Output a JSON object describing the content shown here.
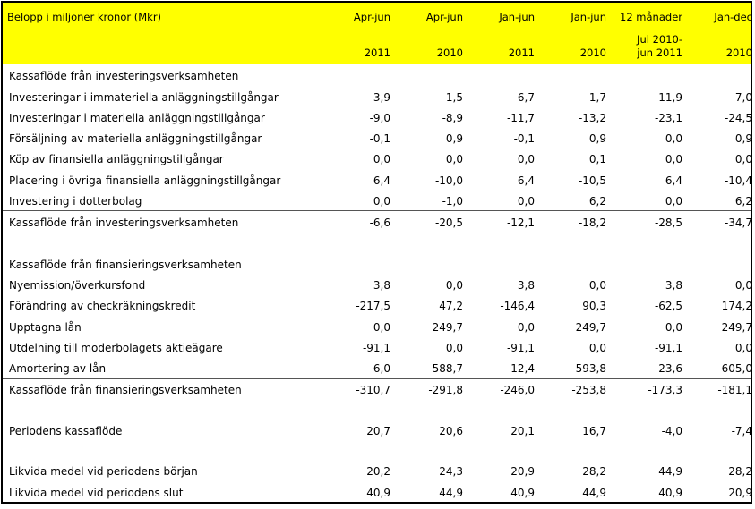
{
  "header": {
    "title": "Belopp i miljoner kronor (Mkr)",
    "columns": [
      {
        "line1": "Apr-jun",
        "line2": "",
        "line3": "2011"
      },
      {
        "line1": "Apr-jun",
        "line2": "",
        "line3": "2010"
      },
      {
        "line1": "Jan-jun",
        "line2": "",
        "line3": "2011"
      },
      {
        "line1": "Jan-jun",
        "line2": "",
        "line3": "2010"
      },
      {
        "line1": "12 månader",
        "line2": "Jul 2010-",
        "line3": "jun 2011"
      },
      {
        "line1": "Jan-dec",
        "line2": "",
        "line3": "2010"
      }
    ]
  },
  "rows": [
    {
      "label": "Kassaflöde från investeringsverksamheten",
      "values": [
        "",
        "",
        "",
        "",
        "",
        ""
      ]
    },
    {
      "label": "Investeringar i immateriella anläggningstillgångar",
      "values": [
        "-3,9",
        "-1,5",
        "-6,7",
        "-1,7",
        "-11,9",
        "-7,0"
      ]
    },
    {
      "label": "Investeringar i materiella anläggningstillgångar",
      "values": [
        "-9,0",
        "-8,9",
        "-11,7",
        "-13,2",
        "-23,1",
        "-24,5"
      ]
    },
    {
      "label": "Försäljning av materiella anläggningstillgångar",
      "values": [
        "-0,1",
        "0,9",
        "-0,1",
        "0,9",
        "0,0",
        "0,9"
      ]
    },
    {
      "label": "Köp av finansiella anläggningstillgångar",
      "values": [
        "0,0",
        "0,0",
        "0,0",
        "0,1",
        "0,0",
        "0,0"
      ]
    },
    {
      "label": "Placering i övriga finansiella anläggningstillgångar",
      "values": [
        "6,4",
        "-10,0",
        "6,4",
        "-10,5",
        "6,4",
        "-10,4"
      ]
    },
    {
      "label": "Investering i dotterbolag",
      "values": [
        "0,0",
        "-1,0",
        "0,0",
        "6,2",
        "0,0",
        "6,2"
      ]
    },
    {
      "label": "Kassaflöde från investeringsverksamheten",
      "values": [
        "-6,6",
        "-20,5",
        "-12,1",
        "-18,2",
        "-28,5",
        "-34,7"
      ]
    },
    {
      "label": "Kassaflöde från finansieringsverksamheten",
      "values": [
        "",
        "",
        "",
        "",
        "",
        ""
      ]
    },
    {
      "label": "Nyemission/överkursfond",
      "values": [
        "3,8",
        "0,0",
        "3,8",
        "0,0",
        "3,8",
        "0,0"
      ]
    },
    {
      "label": "Förändring av checkräkningskredit",
      "values": [
        "-217,5",
        "47,2",
        "-146,4",
        "90,3",
        "-62,5",
        "174,2"
      ]
    },
    {
      "label": "Upptagna lån",
      "values": [
        "0,0",
        "249,7",
        "0,0",
        "249,7",
        "0,0",
        "249,7"
      ]
    },
    {
      "label": "Utdelning till moderbolagets aktieägare",
      "values": [
        "-91,1",
        "0,0",
        "-91,1",
        "0,0",
        "-91,1",
        "0,0"
      ]
    },
    {
      "label": "Amortering av lån",
      "values": [
        "-6,0",
        "-588,7",
        "-12,4",
        "-593,8",
        "-23,6",
        "-605,0"
      ]
    },
    {
      "label": "Kassaflöde från finansieringsverksamheten",
      "values": [
        "-310,7",
        "-291,8",
        "-246,0",
        "-253,8",
        "-173,3",
        "-181,1"
      ]
    },
    {
      "label": "Periodens kassaflöde",
      "values": [
        "20,7",
        "20,6",
        "20,1",
        "16,7",
        "-4,0",
        "-7,4"
      ]
    },
    {
      "label": "Likvida medel vid periodens början",
      "values": [
        "20,2",
        "24,3",
        "20,9",
        "28,2",
        "44,9",
        "28,2"
      ]
    },
    {
      "label": "Likvida medel vid periodens slut",
      "values": [
        "40,9",
        "44,9",
        "40,9",
        "44,9",
        "40,9",
        "20,9"
      ]
    }
  ],
  "colors": {
    "header_bg": "#ffff00",
    "border": "#000000",
    "rule": "#555555"
  }
}
